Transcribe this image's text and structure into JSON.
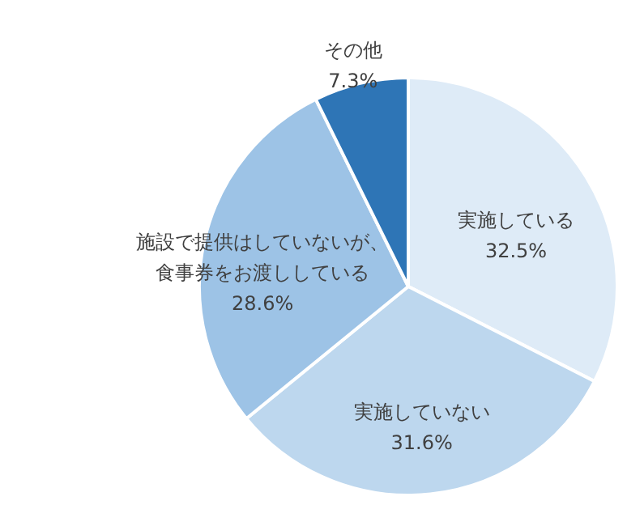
{
  "chart_data": {
    "type": "pie",
    "categories": [
      "実施している",
      "実施していない",
      "施設で提供はしていないが、食事券をお渡ししている",
      "その他"
    ],
    "values": [
      32.5,
      31.6,
      28.6,
      7.3
    ],
    "value_labels": [
      "32.5%",
      "31.6%",
      "28.6%",
      "7.3%"
    ],
    "colors": [
      "#deebf7",
      "#bdd7ee",
      "#9dc3e6",
      "#2e75b6"
    ]
  }
}
